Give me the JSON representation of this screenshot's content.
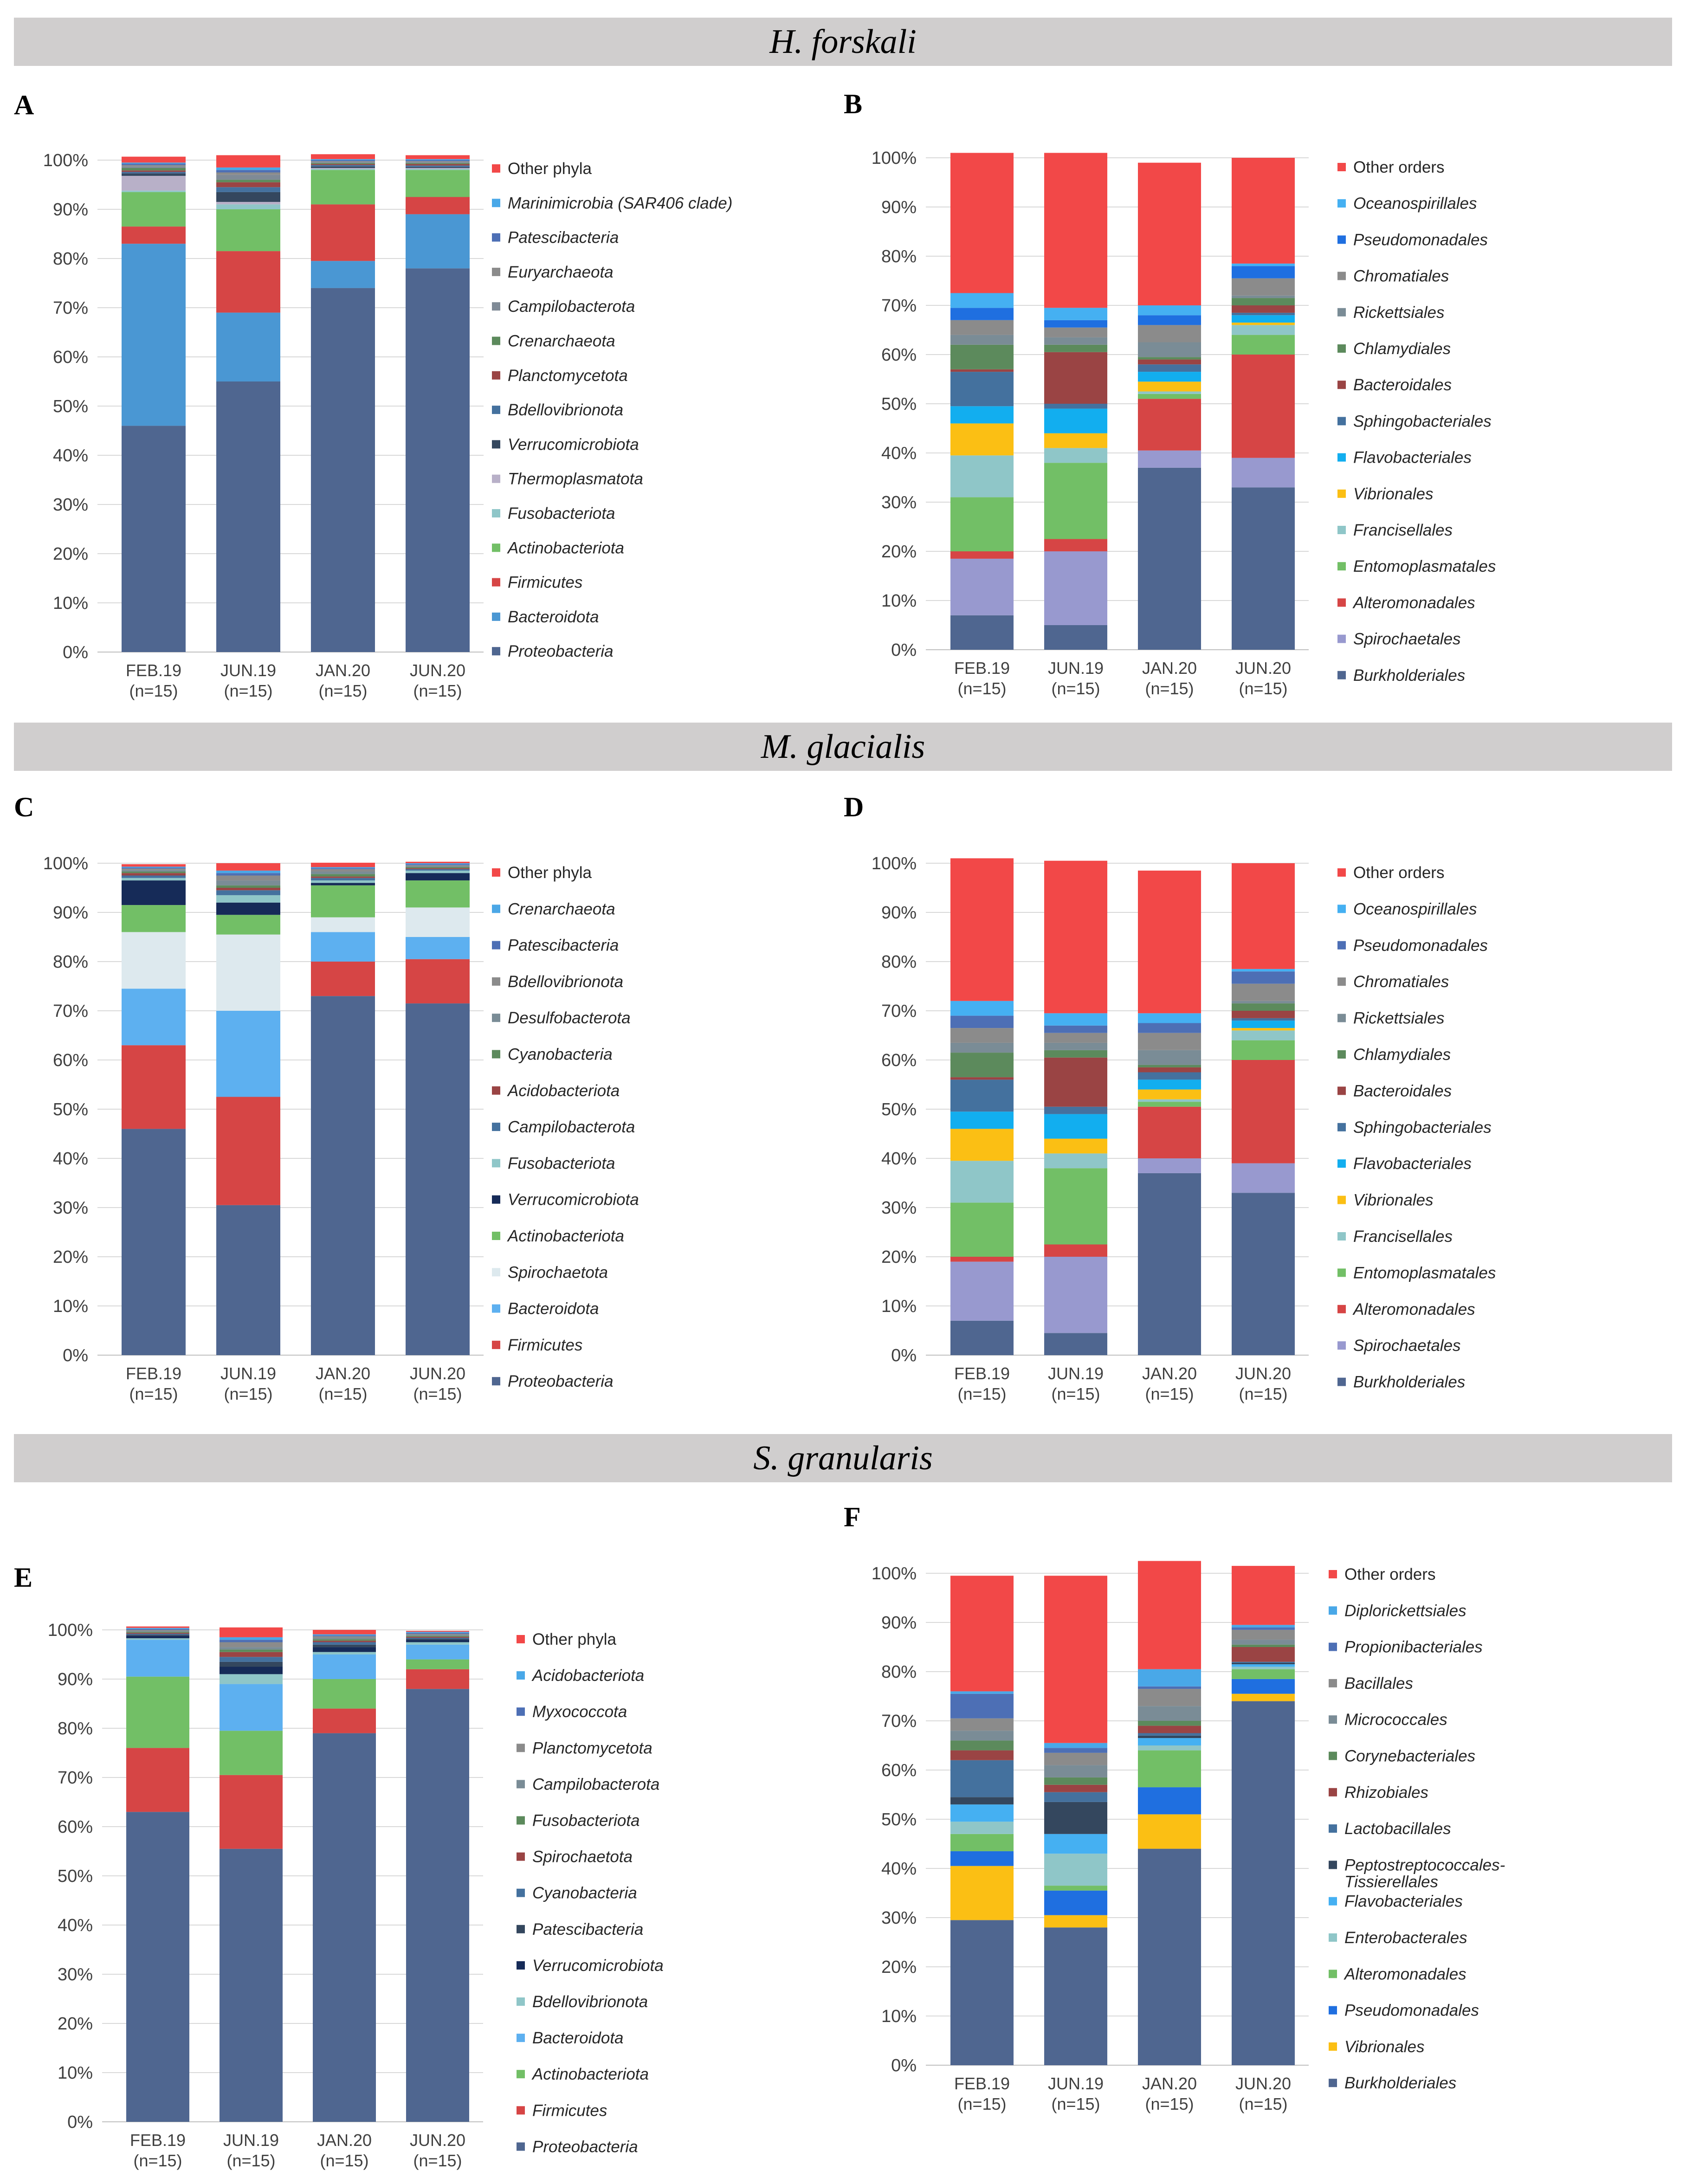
{
  "sections": [
    {
      "title": "H. forskali"
    },
    {
      "title": "M. glacialis"
    },
    {
      "title": "S. granularis"
    }
  ],
  "colors": {
    "band": "#d0cece"
  },
  "chart_data": [
    {
      "panel": "A",
      "type": "bar",
      "stacked": true,
      "categories": [
        "FEB.19\n(n=15)",
        "JUN.19\n(n=15)",
        "JAN.20\n(n=15)",
        "JUN.20\n(n=15)"
      ],
      "ylim": [
        0,
        100
      ],
      "yticks": [
        "0%",
        "10%",
        "20%",
        "30%",
        "40%",
        "50%",
        "60%",
        "70%",
        "80%",
        "90%",
        "100%"
      ],
      "series": [
        {
          "name": "Proteobacteria",
          "color": "#4f6690",
          "values": [
            46,
            55,
            74,
            78
          ]
        },
        {
          "name": "Bacteroidota",
          "color": "#4a97d3",
          "values": [
            37,
            14,
            5.5,
            11
          ]
        },
        {
          "name": "Firmicutes",
          "color": "#d64545",
          "values": [
            3.5,
            12.5,
            11.5,
            3.5
          ]
        },
        {
          "name": "Actinobacteriota",
          "color": "#72bf66",
          "values": [
            7,
            8.5,
            7,
            5.5
          ]
        },
        {
          "name": "Fusobacteriota",
          "color": "#8fc6c8",
          "values": [
            0.3,
            1,
            0.2,
            0.2
          ]
        },
        {
          "name": "Thermoplasmatota",
          "color": "#b8b0c8",
          "values": [
            3,
            0.5,
            0.2,
            0.2
          ]
        },
        {
          "name": "Verrucomicrobiota",
          "color": "#34475e",
          "values": [
            0.5,
            2,
            0.3,
            0.2
          ]
        },
        {
          "name": "Bdellovibrionota",
          "color": "#44719e",
          "values": [
            0.3,
            1,
            0.3,
            0.3
          ]
        },
        {
          "name": "Planctomycetota",
          "color": "#9a4444",
          "values": [
            0.3,
            1,
            0.2,
            0.3
          ]
        },
        {
          "name": "Crenarchaeota",
          "color": "#5c8a5c",
          "values": [
            0.5,
            0.5,
            0.2,
            0.2
          ]
        },
        {
          "name": "Campilobacterota",
          "color": "#7f8a96",
          "values": [
            0.3,
            1,
            0.2,
            0.2
          ]
        },
        {
          "name": "Euryarchaeota",
          "color": "#8b8b8b",
          "values": [
            0.3,
            0.5,
            0.2,
            0.2
          ]
        },
        {
          "name": "Patescibacteria",
          "color": "#4d6fb5",
          "values": [
            0.3,
            0.5,
            0.2,
            0.2
          ]
        },
        {
          "name": "Marinimicrobia (SAR406 clade)",
          "color": "#49a8e8",
          "values": [
            0.2,
            0.5,
            0.2,
            0.2
          ]
        },
        {
          "name": "Other phyla",
          "color": "#f24848",
          "values": [
            1.2,
            2.5,
            1,
            0.8
          ]
        }
      ]
    },
    {
      "panel": "B",
      "type": "bar",
      "stacked": true,
      "categories": [
        "FEB.19\n(n=15)",
        "JUN.19\n(n=15)",
        "JAN.20\n(n=15)",
        "JUN.20\n(n=15)"
      ],
      "ylim": [
        0,
        100
      ],
      "yticks": [
        "0%",
        "10%",
        "20%",
        "30%",
        "40%",
        "50%",
        "60%",
        "70%",
        "80%",
        "90%",
        "100%"
      ],
      "series": [
        {
          "name": "Burkholderiales",
          "color": "#4f6690",
          "values": [
            7,
            5,
            37,
            33
          ]
        },
        {
          "name": "Spirochaetales",
          "color": "#9899cf",
          "values": [
            11.5,
            15,
            3.5,
            6
          ]
        },
        {
          "name": "Alteromonadales",
          "color": "#d64545",
          "values": [
            1.5,
            2.5,
            10.5,
            21
          ]
        },
        {
          "name": "Entomoplasmatales",
          "color": "#72bf66",
          "values": [
            11,
            15.5,
            1,
            4
          ]
        },
        {
          "name": "Francisellales",
          "color": "#8fc6c8",
          "values": [
            8.5,
            3,
            0.5,
            2
          ]
        },
        {
          "name": "Vibrionales",
          "color": "#fbbf14",
          "values": [
            6.5,
            3,
            2,
            0.5
          ]
        },
        {
          "name": "Flavobacteriales",
          "color": "#12aeef",
          "values": [
            3.5,
            5,
            2,
            1.5
          ]
        },
        {
          "name": "Sphingobacteriales",
          "color": "#44719e",
          "values": [
            7,
            1,
            1.5,
            0.5
          ]
        },
        {
          "name": "Bacteroidales",
          "color": "#9a4444",
          "values": [
            0.5,
            10.5,
            1,
            1.5
          ]
        },
        {
          "name": "Chlamydiales",
          "color": "#5c8a5c",
          "values": [
            5,
            1.5,
            0.5,
            1.5
          ]
        },
        {
          "name": "Rickettsiales",
          "color": "#7a8c96",
          "values": [
            2,
            1.5,
            3,
            0.5
          ]
        },
        {
          "name": "Chromatiales",
          "color": "#8b8b8b",
          "values": [
            3,
            2,
            3.5,
            3.5
          ]
        },
        {
          "name": "Pseudomonadales",
          "color": "#1f6fe0",
          "values": [
            2.5,
            1.5,
            2,
            2.5
          ]
        },
        {
          "name": "Oceanospirillales",
          "color": "#45b0f2",
          "values": [
            3,
            2.5,
            2,
            0.5
          ]
        },
        {
          "name": "Other orders",
          "color": "#f24848",
          "values": [
            28.5,
            31.5,
            29,
            21.5
          ]
        }
      ]
    },
    {
      "panel": "C",
      "type": "bar",
      "stacked": true,
      "categories": [
        "FEB.19\n(n=15)",
        "JUN.19\n(n=15)",
        "JAN.20\n(n=15)",
        "JUN.20\n(n=15)"
      ],
      "ylim": [
        0,
        100
      ],
      "yticks": [
        "0%",
        "10%",
        "20%",
        "30%",
        "40%",
        "50%",
        "60%",
        "70%",
        "80%",
        "90%",
        "100%"
      ],
      "series": [
        {
          "name": "Proteobacteria",
          "color": "#4f6690",
          "values": [
            46,
            30.5,
            73,
            71.5
          ]
        },
        {
          "name": "Firmicutes",
          "color": "#d64545",
          "values": [
            17,
            22,
            7,
            9
          ]
        },
        {
          "name": "Bacteroidota",
          "color": "#5db0f0",
          "values": [
            11.5,
            17.5,
            6,
            4.5
          ]
        },
        {
          "name": "Spirochaetota",
          "color": "#dde9ee",
          "values": [
            11.5,
            15.5,
            3,
            6
          ]
        },
        {
          "name": "Actinobacteriota",
          "color": "#72bf66",
          "values": [
            5.5,
            4,
            6.5,
            5.5
          ]
        },
        {
          "name": "Verrucomicrobiota",
          "color": "#162b58",
          "values": [
            5,
            2.5,
            0.5,
            1.5
          ]
        },
        {
          "name": "Fusobacteriota",
          "color": "#8fc6c8",
          "values": [
            0.5,
            1.5,
            0.5,
            0.5
          ]
        },
        {
          "name": "Campilobacterota",
          "color": "#44719e",
          "values": [
            0.5,
            1,
            0.5,
            0.3
          ]
        },
        {
          "name": "Acidobacteriota",
          "color": "#9a4444",
          "values": [
            0.5,
            0.5,
            0.3,
            0.2
          ]
        },
        {
          "name": "Cyanobacteria",
          "color": "#5c8a5c",
          "values": [
            0.3,
            0.5,
            0.5,
            0.2
          ]
        },
        {
          "name": "Desulfobacterota",
          "color": "#7a8c96",
          "values": [
            0.3,
            1,
            0.5,
            0.2
          ]
        },
        {
          "name": "Bdellovibrionota",
          "color": "#8b8b8b",
          "values": [
            0.3,
            1,
            0.5,
            0.2
          ]
        },
        {
          "name": "Patescibacteria",
          "color": "#4d6fb5",
          "values": [
            0.2,
            0.5,
            0.2,
            0.2
          ]
        },
        {
          "name": "Crenarchaeota",
          "color": "#4ba7e6",
          "values": [
            0.2,
            0.5,
            0.2,
            0.2
          ]
        },
        {
          "name": "Other phyla",
          "color": "#f24848",
          "values": [
            0.5,
            1.5,
            0.9,
            0.3
          ]
        }
      ]
    },
    {
      "panel": "D",
      "type": "bar",
      "stacked": true,
      "categories": [
        "FEB.19\n(n=15)",
        "JUN.19\n(n=15)",
        "JAN.20\n(n=15)",
        "JUN.20\n(n=15)"
      ],
      "ylim": [
        0,
        100
      ],
      "yticks": [
        "0%",
        "10%",
        "20%",
        "30%",
        "40%",
        "50%",
        "60%",
        "70%",
        "80%",
        "90%",
        "100%"
      ],
      "series": [
        {
          "name": "Burkholderiales",
          "color": "#4f6690",
          "values": [
            7,
            4.5,
            37,
            33
          ]
        },
        {
          "name": "Spirochaetales",
          "color": "#9899cf",
          "values": [
            12,
            15.5,
            3,
            6
          ]
        },
        {
          "name": "Alteromonadales",
          "color": "#d64545",
          "values": [
            1,
            2.5,
            10.5,
            21
          ]
        },
        {
          "name": "Entomoplasmatales",
          "color": "#72bf66",
          "values": [
            11,
            15.5,
            1,
            4
          ]
        },
        {
          "name": "Francisellales",
          "color": "#8fc6c8",
          "values": [
            8.5,
            3,
            0.5,
            2
          ]
        },
        {
          "name": "Vibrionales",
          "color": "#fbbf14",
          "values": [
            6.5,
            3,
            2,
            0.5
          ]
        },
        {
          "name": "Flavobacteriales",
          "color": "#12aeef",
          "values": [
            3.5,
            5,
            2,
            1.5
          ]
        },
        {
          "name": "Sphingobacteriales",
          "color": "#44719e",
          "values": [
            6.5,
            1.5,
            1.5,
            0.5
          ]
        },
        {
          "name": "Bacteroidales",
          "color": "#9a4444",
          "values": [
            0.5,
            10,
            1,
            1.5
          ]
        },
        {
          "name": "Chlamydiales",
          "color": "#5c8a5c",
          "values": [
            5,
            1.5,
            0.5,
            1.5
          ]
        },
        {
          "name": "Rickettsiales",
          "color": "#7a8c96",
          "values": [
            2,
            1.5,
            3,
            0.5
          ]
        },
        {
          "name": "Chromatiales",
          "color": "#8b8b8b",
          "values": [
            3,
            2,
            3.5,
            3.5
          ]
        },
        {
          "name": "Pseudomonadales",
          "color": "#4d6fb5",
          "values": [
            2.5,
            1.5,
            2,
            2.5
          ]
        },
        {
          "name": "Oceanospirillales",
          "color": "#45b0f2",
          "values": [
            3,
            2.5,
            2,
            0.5
          ]
        },
        {
          "name": "Other orders",
          "color": "#f24848",
          "values": [
            29,
            31,
            29,
            21.5
          ]
        }
      ]
    },
    {
      "panel": "E",
      "type": "bar",
      "stacked": true,
      "categories": [
        "FEB.19\n(n=15)",
        "JUN.19\n(n=15)",
        "JAN.20\n(n=15)",
        "JUN.20\n(n=15)"
      ],
      "ylim": [
        0,
        100
      ],
      "yticks": [
        "0%",
        "10%",
        "20%",
        "30%",
        "40%",
        "50%",
        "60%",
        "70%",
        "80%",
        "90%",
        "100%"
      ],
      "series": [
        {
          "name": "Proteobacteria",
          "color": "#4f6690",
          "values": [
            63,
            55.5,
            79,
            88
          ]
        },
        {
          "name": "Firmicutes",
          "color": "#d64545",
          "values": [
            13,
            15,
            5,
            4
          ]
        },
        {
          "name": "Actinobacteriota",
          "color": "#72bf66",
          "values": [
            14.5,
            9,
            6,
            2
          ]
        },
        {
          "name": "Bacteroidota",
          "color": "#5db0f0",
          "values": [
            7.5,
            9.5,
            5,
            3
          ]
        },
        {
          "name": "Bdellovibrionota",
          "color": "#8fc6c8",
          "values": [
            0.3,
            2,
            0.5,
            0.5
          ]
        },
        {
          "name": "Verrucomicrobiota",
          "color": "#162b58",
          "values": [
            0.5,
            1.5,
            1,
            0.5
          ]
        },
        {
          "name": "Patescibacteria",
          "color": "#34475e",
          "values": [
            0.2,
            1,
            0.5,
            0.2
          ]
        },
        {
          "name": "Cyanobacteria",
          "color": "#44719e",
          "values": [
            0.2,
            1,
            0.5,
            0.2
          ]
        },
        {
          "name": "Spirochaetota",
          "color": "#9a4444",
          "values": [
            0.2,
            1,
            0.3,
            0.2
          ]
        },
        {
          "name": "Fusobacteriota",
          "color": "#5c8a5c",
          "values": [
            0.2,
            0.5,
            0.3,
            0.2
          ]
        },
        {
          "name": "Campilobacterota",
          "color": "#7a8c96",
          "values": [
            0.2,
            0.5,
            0.3,
            0.2
          ]
        },
        {
          "name": "Planctomycetota",
          "color": "#8b8b8b",
          "values": [
            0.2,
            1,
            0.3,
            0.2
          ]
        },
        {
          "name": "Myxococcota",
          "color": "#4d6fb5",
          "values": [
            0.2,
            0.5,
            0.2,
            0.2
          ]
        },
        {
          "name": "Acidobacteriota",
          "color": "#49a8e8",
          "values": [
            0.2,
            0.5,
            0.2,
            0.2
          ]
        },
        {
          "name": "Other phyla",
          "color": "#f24848",
          "values": [
            0.3,
            2,
            0.9,
            0.2
          ]
        }
      ]
    },
    {
      "panel": "F",
      "type": "bar",
      "stacked": true,
      "categories": [
        "FEB.19\n(n=15)",
        "JUN.19\n(n=15)",
        "JAN.20\n(n=15)",
        "JUN.20\n(n=15)"
      ],
      "ylim": [
        0,
        100
      ],
      "yticks": [
        "0%",
        "10%",
        "20%",
        "30%",
        "40%",
        "50%",
        "60%",
        "70%",
        "80%",
        "90%",
        "100%"
      ],
      "series": [
        {
          "name": "Burkholderiales",
          "color": "#4f6690",
          "values": [
            29.5,
            28,
            44,
            74
          ]
        },
        {
          "name": "Vibrionales",
          "color": "#fbbf14",
          "values": [
            11,
            2.5,
            7,
            1.5
          ]
        },
        {
          "name": "Pseudomonadales",
          "color": "#1f6fe0",
          "values": [
            3,
            5,
            5.5,
            3
          ]
        },
        {
          "name": "Alteromonadales",
          "color": "#72bf66",
          "values": [
            3.5,
            1,
            7.5,
            2
          ]
        },
        {
          "name": "Enterobacterales",
          "color": "#8fc6c8",
          "values": [
            2.5,
            6.5,
            1,
            0.5
          ]
        },
        {
          "name": "Flavobacteriales",
          "color": "#45b0f2",
          "values": [
            3.5,
            4,
            1.5,
            0.5
          ]
        },
        {
          "name": "Peptostreptococcales-Tissierellales",
          "color": "#34475e",
          "values": [
            1.5,
            6.5,
            0.5,
            0.3
          ]
        },
        {
          "name": "Lactobacillales",
          "color": "#44719e",
          "values": [
            7.5,
            2,
            0.5,
            0.2
          ]
        },
        {
          "name": "Rhizobiales",
          "color": "#9a4444",
          "values": [
            2,
            1.5,
            1.5,
            3
          ]
        },
        {
          "name": "Corynebacteriales",
          "color": "#5c8a5c",
          "values": [
            2,
            1.5,
            1,
            0.5
          ]
        },
        {
          "name": "Micrococcales",
          "color": "#7a8c96",
          "values": [
            2,
            2.5,
            3,
            1
          ]
        },
        {
          "name": "Bacillales",
          "color": "#8b8b8b",
          "values": [
            2.5,
            2.5,
            3.5,
            2
          ]
        },
        {
          "name": "Propionibacteriales",
          "color": "#4d6fb5",
          "values": [
            5,
            1,
            0.5,
            0.5
          ]
        },
        {
          "name": "Diplorickettsiales",
          "color": "#49a8e8",
          "values": [
            0.5,
            1,
            3.5,
            0.5
          ]
        },
        {
          "name": "Other orders",
          "color": "#f24848",
          "values": [
            23.5,
            34,
            22,
            12
          ]
        }
      ]
    }
  ]
}
